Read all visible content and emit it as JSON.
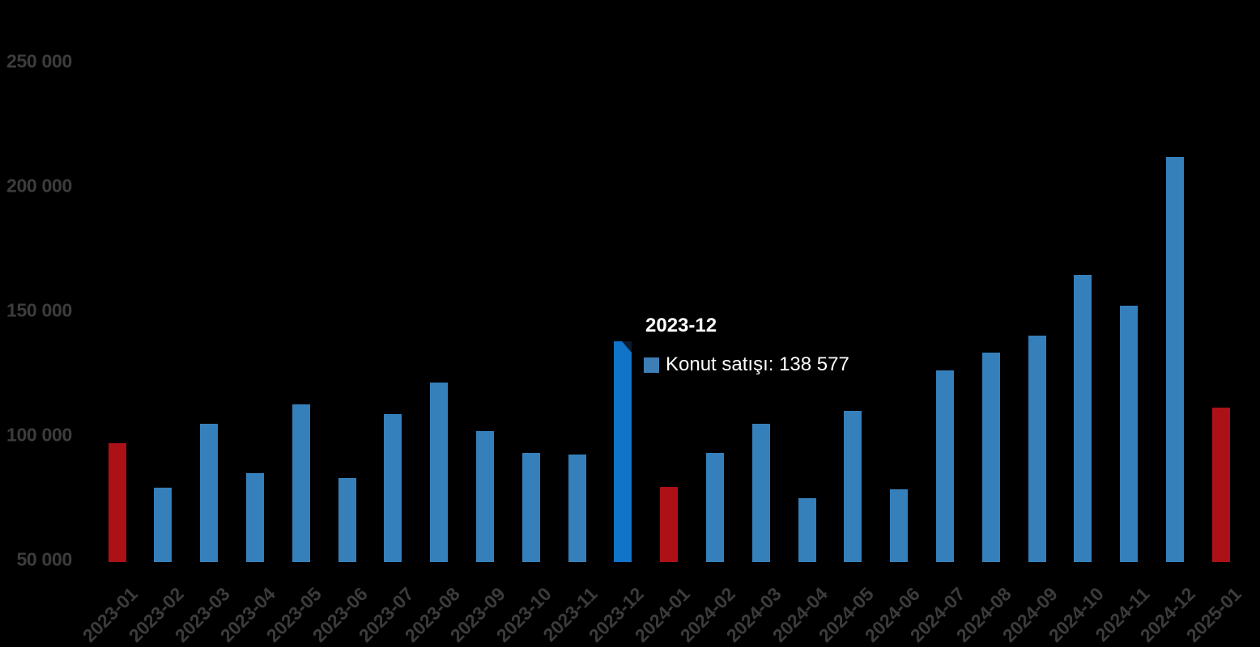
{
  "chart_data": {
    "type": "bar",
    "title": "",
    "xlabel": "",
    "ylabel": "",
    "categories": [
      "2023-01",
      "2023-02",
      "2023-03",
      "2023-04",
      "2023-05",
      "2023-06",
      "2023-07",
      "2023-08",
      "2023-09",
      "2023-10",
      "2023-11",
      "2023-12",
      "2024-01",
      "2024-02",
      "2024-03",
      "2024-04",
      "2024-05",
      "2024-06",
      "2024-07",
      "2024-08",
      "2024-09",
      "2024-10",
      "2024-11",
      "2024-12",
      "2025-01"
    ],
    "series": [
      {
        "name": "Konut satışı",
        "values": [
          97708,
          80031,
          105476,
          85652,
          113424,
          83636,
          109548,
          122091,
          102656,
          93761,
          93178,
          138577,
          80308,
          93902,
          105394,
          75569,
          110588,
          79313,
          127088,
          134155,
          140919,
          165138,
          153014,
          212637,
          112173
        ]
      }
    ],
    "ylim": [
      50000,
      260000
    ],
    "yticks": {
      "values": [
        50000,
        100000,
        150000,
        200000,
        250000
      ],
      "labels": [
        "50 000",
        "100 000",
        "150 000",
        "200 000",
        "250 000"
      ]
    },
    "grid": false,
    "legend_position": "none",
    "background_color": "#000000",
    "axis_label_color": "#3c3c3c",
    "bar_colors": {
      "default": "#3580bb",
      "january": "#ab1117",
      "highlight": "#1174c8"
    },
    "january_indices": [
      0,
      12,
      24
    ],
    "highlight_index": 11
  },
  "tooltip": {
    "title": "2023-12",
    "series_label": "Konut satışı",
    "value": "138 577",
    "text": "Konut satışı: 138 577",
    "swatch_color": "#3d7eb5",
    "text_color": "#ffffff"
  }
}
